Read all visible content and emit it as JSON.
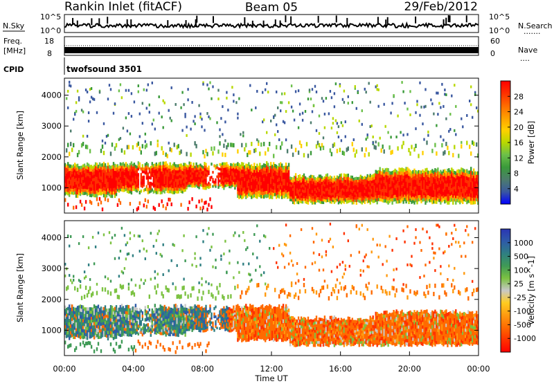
{
  "header": {
    "title": "Rankin Inlet (fitACF)",
    "beam": "Beam 05",
    "date": "29/Feb/2012"
  },
  "nsky_panel": {
    "left_label": "N.Sky",
    "right_label": "N.Search",
    "left_ticks": [
      "10^5",
      "10^0"
    ],
    "right_ticks": [
      "10^5",
      "10^0"
    ],
    "right_marker": "......."
  },
  "freq_panel": {
    "label_line1": "Freq.",
    "label_line2": "[MHz]",
    "left_ticks": [
      "18",
      "8"
    ],
    "right_ticks": [
      "60",
      "0"
    ],
    "right_label": "Nave",
    "right_marker": "...."
  },
  "cpid_panel": {
    "label": "CPID",
    "program": "twofsound  3501"
  },
  "chart_data": [
    {
      "type": "heatmap",
      "name": "power",
      "ylabel": "Slant Range [km]",
      "xlabel": "",
      "yticks": [
        1000,
        2000,
        3000,
        4000
      ],
      "ylim": [
        180,
        4550
      ],
      "colorbar": {
        "label": "Power [dB]",
        "ticks": [
          "28",
          "24",
          "20",
          "16",
          "12",
          "8",
          "4"
        ],
        "colors": [
          "#ff0000",
          "#ff3000",
          "#ff6a00",
          "#ffa000",
          "#ffd000",
          "#b8d800",
          "#6cc04a",
          "#3a9a3a",
          "#4c7c6c",
          "#3a58a0",
          "#0000ff"
        ]
      }
    },
    {
      "type": "heatmap",
      "name": "velocity",
      "ylabel": "Slant Range [km]",
      "xlabel": "Time UT",
      "yticks": [
        1000,
        2000,
        3000,
        4000
      ],
      "ylim": [
        180,
        4550
      ],
      "xticks": [
        "00:00",
        "04:00",
        "08:00",
        "12:00",
        "16:00",
        "20:00",
        "00:00"
      ],
      "colorbar": {
        "label": "Velocity [m s^-1]",
        "ticks": [
          "1000",
          "500",
          "100",
          "25",
          "-25",
          "-100",
          "-500",
          "-1000"
        ],
        "colors": [
          "#2a36b4",
          "#2e5aa8",
          "#2f7f82",
          "#3f9a56",
          "#7cc242",
          "#c8c8c8",
          "#ffcc20",
          "#ff9a10",
          "#ff6a00",
          "#ff3200",
          "#ff0000"
        ]
      }
    }
  ]
}
